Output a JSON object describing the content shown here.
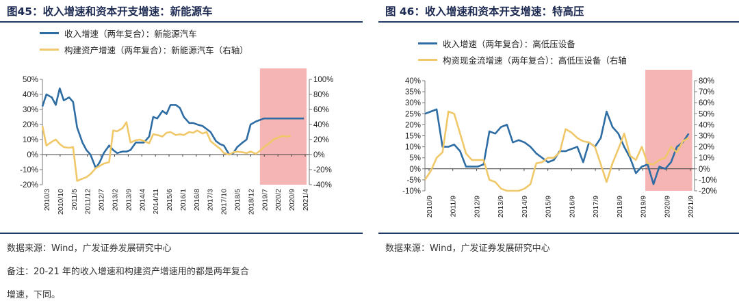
{
  "charts": [
    {
      "title": "图45：收入增速和资本开支增速：新能源车",
      "legend": [
        "收入增速（两年复合）：新能源汽车",
        "构建资产增速（两年复合）：新能源汽车（右轴）"
      ],
      "source": "数据来源：Wind，广发证券发展研究中心",
      "notes": [
        "备注：20-21 年的收入增速和构建资产增速用的都是两年复合",
        "增速，下同。"
      ]
    },
    {
      "title": "图 46：收入增速和资本开支增速：特高压",
      "legend": [
        "收入增速（两年复合）：高低压设备",
        "构资现金流增速（两年复合）：高低压设备（右轴"
      ],
      "source": "数据来源：Wind，广发证券发展研究中心",
      "notes": []
    }
  ],
  "colors": {
    "revenue": "#2e6da4",
    "capex": "#f0c869",
    "highlight": "#f5b5b5",
    "rule": "#1d3a6b"
  },
  "chart_data": [
    {
      "type": "line",
      "xticks": [
        "2010/3",
        "2010/10",
        "2011/5",
        "2011/12",
        "2012/7",
        "2013/2",
        "2013/9",
        "2014/4",
        "2014/11",
        "2015/6",
        "2016/1",
        "2016/8",
        "2017/3",
        "2017/10",
        "2018/5",
        "2018/12",
        "2019/7",
        "2020/2",
        "2020/9",
        "2021/4"
      ],
      "left_axis": {
        "ticks": [
          "50%",
          "40%",
          "30%",
          "20%",
          "10%",
          "0%",
          "-10%",
          "-20%"
        ],
        "ylim": [
          -0.2,
          0.5
        ]
      },
      "right_axis": {
        "ticks": [
          "100%",
          "80%",
          "60%",
          "40%",
          "20%",
          "0%",
          "-20%",
          "-40%"
        ],
        "ylim": [
          -0.4,
          1.0
        ]
      },
      "highlight_x": [
        16.3,
        19.8
      ],
      "x_range": [
        0,
        20
      ],
      "series": [
        {
          "name": "收入增速（两年复合）：新能源汽车",
          "axis": "left",
          "x": [
            0,
            0.3,
            0.7,
            1,
            1.3,
            1.6,
            2,
            2.3,
            2.6,
            3,
            3.3,
            3.6,
            4,
            4.3,
            4.6,
            5,
            5.3,
            5.6,
            6,
            6.3,
            6.6,
            7,
            7.3,
            7.6,
            8,
            8.3,
            8.6,
            9,
            9.3,
            9.6,
            10,
            10.3,
            10.6,
            11,
            11.3,
            11.6,
            12,
            12.3,
            12.6,
            13,
            13.3,
            13.6,
            14,
            14.3,
            14.6,
            15,
            15.3,
            15.6,
            16,
            16.3,
            16.6,
            17,
            17.3,
            17.6,
            18,
            18.3,
            18.6,
            19,
            19.3,
            19.6
          ],
          "y": [
            0.32,
            0.4,
            0.38,
            0.33,
            0.44,
            0.36,
            0.38,
            0.35,
            0.18,
            0.08,
            0.03,
            0.0,
            -0.09,
            -0.05,
            0.01,
            0.06,
            0.03,
            0.01,
            0.02,
            0.02,
            0.03,
            0.08,
            0.08,
            0.08,
            0.12,
            0.25,
            0.24,
            0.29,
            0.27,
            0.33,
            0.33,
            0.31,
            0.25,
            0.21,
            0.21,
            0.2,
            0.19,
            0.17,
            0.15,
            0.09,
            0.07,
            0.06,
            0.0,
            0.01,
            0.05,
            0.08,
            0.1,
            0.2,
            0.22,
            0.23,
            0.24,
            0.24,
            0.24,
            0.24,
            0.24,
            0.24,
            0.24,
            0.24,
            0.24,
            0.24
          ]
        },
        {
          "name": "构建资产增速（两年复合）：新能源汽车（右轴）",
          "axis": "right",
          "x": [
            0,
            0.3,
            0.7,
            1,
            1.3,
            1.6,
            2,
            2.3,
            2.6,
            3,
            3.3,
            3.6,
            4,
            4.3,
            4.6,
            5,
            5.3,
            5.6,
            6,
            6.3,
            6.6,
            7,
            7.3,
            7.6,
            8,
            8.3,
            8.6,
            9,
            9.3,
            9.6,
            10,
            10.3,
            10.6,
            11,
            11.3,
            11.6,
            12,
            12.3,
            12.6,
            13,
            13.3,
            13.6,
            14,
            14.3,
            14.6,
            15,
            15.3,
            15.6,
            16,
            16.3,
            16.6,
            17,
            17.3,
            17.6,
            18,
            18.3,
            18.6
          ],
          "y": [
            0.38,
            0.12,
            0.17,
            0.2,
            0.14,
            0.1,
            0.09,
            0.1,
            -0.35,
            -0.32,
            -0.3,
            -0.26,
            -0.18,
            -0.15,
            -0.12,
            -0.1,
            0.32,
            0.31,
            0.35,
            0.43,
            0.16,
            0.19,
            0.2,
            0.18,
            0.15,
            0.27,
            0.26,
            0.24,
            0.29,
            0.3,
            0.26,
            0.27,
            0.26,
            0.3,
            0.29,
            0.32,
            0.28,
            0.3,
            0.18,
            0.12,
            0.08,
            0.02,
            0.0,
            0.03,
            0.04,
            0.03,
            0.02,
            0.04,
            0.01,
            0.05,
            0.1,
            0.15,
            0.2,
            0.22,
            0.25,
            0.24,
            0.25
          ]
        }
      ]
    },
    {
      "type": "line",
      "xticks": [
        "2010/9",
        "2011/9",
        "2012/9",
        "2013/9",
        "2014/9",
        "2015/9",
        "2016/9",
        "2017/9",
        "2018/9",
        "2019/9",
        "2020/9",
        "2021/9"
      ],
      "left_axis": {
        "ticks": [
          "40%",
          "35%",
          "30%",
          "25%",
          "20%",
          "15%",
          "10%",
          "5%",
          "0%",
          "-5%",
          "-10%"
        ],
        "ylim": [
          -0.1,
          0.4
        ]
      },
      "right_axis": {
        "ticks": [
          "80%",
          "70%",
          "60%",
          "50%",
          "40%",
          "30%",
          "20%",
          "10%",
          "0%",
          "-10%",
          "-20%"
        ],
        "ylim": [
          -0.2,
          0.8
        ]
      },
      "highlight_x": [
        9.4,
        11.4
      ],
      "x_range": [
        0,
        11.5
      ],
      "series": [
        {
          "name": "收入增速（两年复合）：高低压设备",
          "axis": "left",
          "x": [
            0,
            0.25,
            0.5,
            0.75,
            1,
            1.25,
            1.5,
            1.75,
            2,
            2.25,
            2.5,
            2.75,
            3,
            3.25,
            3.5,
            3.75,
            4,
            4.25,
            4.5,
            4.75,
            5,
            5.25,
            5.5,
            5.75,
            6,
            6.25,
            6.5,
            6.75,
            7,
            7.25,
            7.5,
            7.75,
            8,
            8.25,
            8.5,
            8.75,
            9,
            9.25,
            9.5,
            9.75,
            10,
            10.25,
            10.5,
            10.75,
            11,
            11.25
          ],
          "y": [
            0.25,
            0.26,
            0.27,
            0.1,
            0.1,
            0.11,
            0.08,
            0.01,
            0.01,
            0.01,
            0.02,
            0.17,
            0.16,
            0.19,
            0.2,
            0.12,
            0.13,
            0.12,
            0.1,
            0.07,
            0.05,
            0.03,
            0.04,
            0.08,
            0.08,
            0.09,
            0.1,
            0.03,
            0.12,
            0.1,
            0.14,
            0.26,
            0.19,
            0.16,
            0.1,
            0.05,
            -0.02,
            0.01,
            0.02,
            -0.07,
            0.01,
            0.0,
            0.03,
            0.1,
            0.12,
            0.16
          ]
        },
        {
          "name": "构资现金流增速（两年复合）：高低压设备（右轴",
          "axis": "right",
          "x": [
            0,
            0.25,
            0.5,
            0.75,
            1,
            1.25,
            1.5,
            1.75,
            2,
            2.25,
            2.5,
            2.75,
            3,
            3.25,
            3.5,
            3.75,
            4,
            4.25,
            4.5,
            4.75,
            5,
            5.25,
            5.5,
            5.75,
            6,
            6.25,
            6.5,
            6.75,
            7,
            7.25,
            7.5,
            7.75,
            8,
            8.25,
            8.5,
            8.75,
            9,
            9.25,
            9.5,
            9.75,
            10,
            10.25,
            10.5,
            10.75,
            11,
            11.25
          ],
          "y": [
            -0.1,
            -0.02,
            0.1,
            0.15,
            0.52,
            0.5,
            0.32,
            0.14,
            0.08,
            0.08,
            0.08,
            -0.1,
            -0.12,
            -0.18,
            -0.2,
            -0.2,
            -0.2,
            -0.18,
            -0.14,
            0.05,
            0.06,
            0.1,
            0.1,
            0.15,
            0.36,
            0.33,
            0.28,
            0.25,
            0.24,
            0.2,
            0.04,
            -0.12,
            0.05,
            0.18,
            0.32,
            0.12,
            0.08,
            0.2,
            0.05,
            0.04,
            0.08,
            0.1,
            0.2,
            0.15,
            0.25,
            0.28
          ]
        }
      ]
    }
  ]
}
